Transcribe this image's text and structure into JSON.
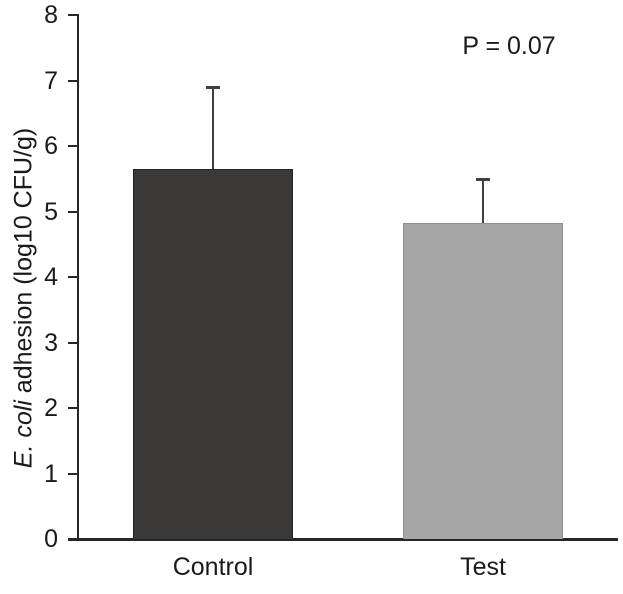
{
  "figure": {
    "p_annotation": "P = 0.07",
    "ylabel_italic": "E. coli",
    "ylabel_rest": " adhesion (log10 CFU/g)"
  },
  "chart_data": {
    "type": "bar",
    "categories": [
      "Control",
      "Test"
    ],
    "values": [
      5.65,
      4.83
    ],
    "errors_upper": [
      1.25,
      0.67
    ],
    "title": "",
    "xlabel": "",
    "ylabel": "E. coli adhesion (log10 CFU/g)",
    "ylim": [
      0,
      8
    ],
    "yticks": [
      0,
      1,
      2,
      3,
      4,
      5,
      6,
      7,
      8
    ],
    "annotations": [
      "P = 0.07"
    ],
    "grid": false,
    "legend": "none",
    "bar_colors": [
      "#3b3838",
      "#a6a6a6"
    ],
    "bar_border_colors": [
      "#242122",
      "#8f8f8f"
    ],
    "error_bar_color": "#404040",
    "axis_color": "#262626",
    "text_color": "#1a1a1a",
    "background_color": "#ffffff"
  }
}
